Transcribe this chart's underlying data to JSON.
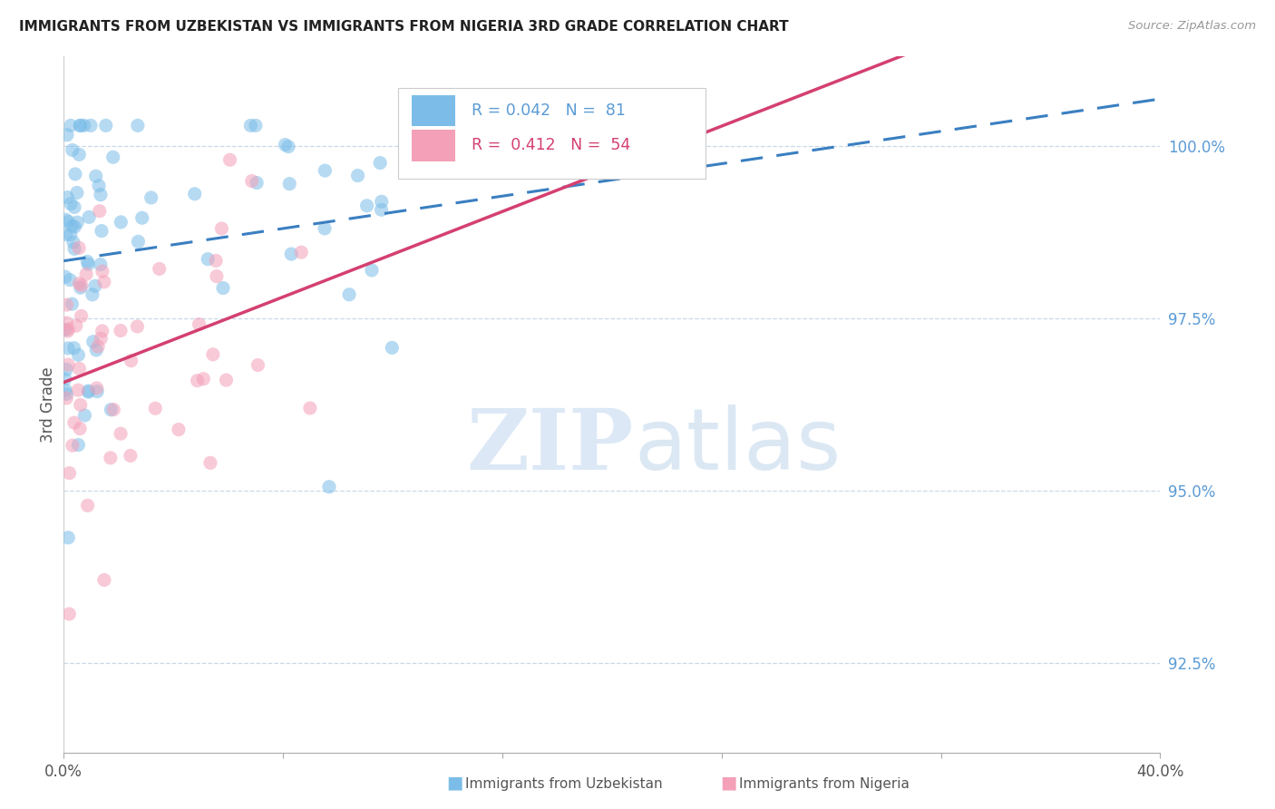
{
  "title": "IMMIGRANTS FROM UZBEKISTAN VS IMMIGRANTS FROM NIGERIA 3RD GRADE CORRELATION CHART",
  "source": "Source: ZipAtlas.com",
  "ylabel": "3rd Grade",
  "ytick_labels": [
    "92.5%",
    "95.0%",
    "97.5%",
    "100.0%"
  ],
  "ytick_values": [
    92.5,
    95.0,
    97.5,
    100.0
  ],
  "xmin": 0.0,
  "xmax": 40.0,
  "ymin": 91.2,
  "ymax": 101.3,
  "uzbekistan_color": "#7bbde8",
  "nigeria_color": "#f4a0b8",
  "uzbekistan_trend_color": "#3a7fc1",
  "nigeria_trend_color": "#d44070",
  "ytick_color": "#5b9bd5",
  "legend_uz_r": "R = 0.042",
  "legend_uz_n": "N =  81",
  "legend_ng_r": "R =  0.412",
  "legend_ng_n": "N =  54"
}
